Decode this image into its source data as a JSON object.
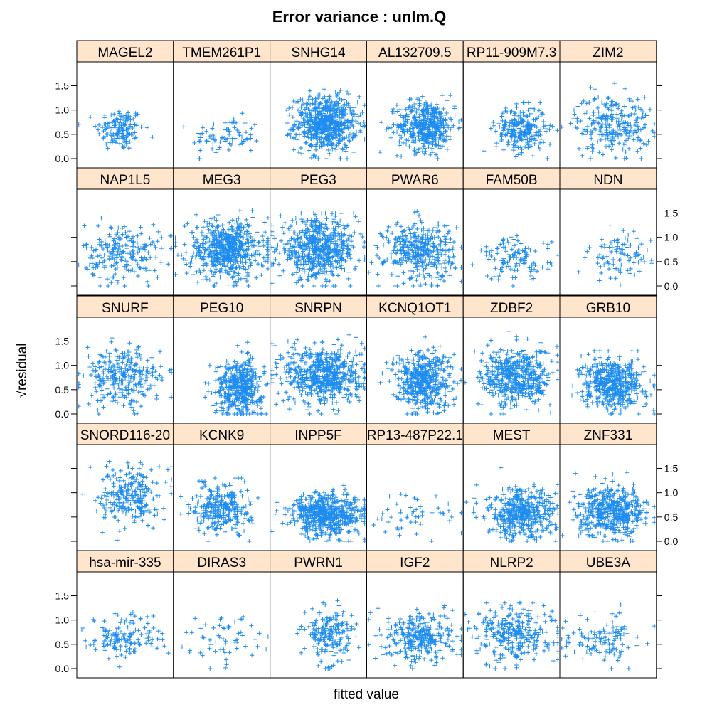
{
  "chart_data": {
    "type": "scatter",
    "title": "Error variance : unlm.Q",
    "xlabel": "fitted value",
    "ylabel": "residual",
    "ylabel_prefix": "√",
    "ylim": [
      0,
      1.8
    ],
    "yticks": [
      "0.0",
      "0.5",
      "1.0",
      "1.5"
    ],
    "grid": false,
    "layout": {
      "columns": 6,
      "rows": 5
    },
    "colors": {
      "point": "#1E8CF0",
      "strip": "#FFE5CC",
      "frame": "#000000"
    },
    "panels": [
      {
        "name": "MAGEL2",
        "n": 150,
        "x": [
          0.45,
          0.12
        ],
        "y": [
          0.6,
          0.22
        ],
        "ymax": 1.1
      },
      {
        "name": "TMEM261P1",
        "n": 80,
        "x": [
          0.55,
          0.18
        ],
        "y": [
          0.45,
          0.2
        ],
        "ymax": 1.15
      },
      {
        "name": "SNHG14",
        "n": 650,
        "x": [
          0.58,
          0.16
        ],
        "y": [
          0.72,
          0.28
        ],
        "ymax": 1.55
      },
      {
        "name": "AL132709.5",
        "n": 450,
        "x": [
          0.62,
          0.15
        ],
        "y": [
          0.68,
          0.26
        ],
        "ymax": 1.3
      },
      {
        "name": "RP11-909M7.3",
        "n": 260,
        "x": [
          0.6,
          0.13
        ],
        "y": [
          0.6,
          0.24
        ],
        "ymax": 1.15
      },
      {
        "name": "ZIM2",
        "n": 260,
        "x": [
          0.55,
          0.2
        ],
        "y": [
          0.72,
          0.3
        ],
        "ymax": 1.55
      },
      {
        "name": "NAP1L5",
        "n": 220,
        "x": [
          0.48,
          0.2
        ],
        "y": [
          0.68,
          0.3
        ],
        "ymax": 1.4
      },
      {
        "name": "MEG3",
        "n": 600,
        "x": [
          0.55,
          0.2
        ],
        "y": [
          0.75,
          0.3
        ],
        "ymax": 1.55
      },
      {
        "name": "PEG3",
        "n": 600,
        "x": [
          0.5,
          0.2
        ],
        "y": [
          0.75,
          0.3
        ],
        "ymax": 1.5
      },
      {
        "name": "PWAR6",
        "n": 400,
        "x": [
          0.55,
          0.18
        ],
        "y": [
          0.72,
          0.3
        ],
        "ymax": 1.7
      },
      {
        "name": "FAM50B",
        "n": 120,
        "x": [
          0.55,
          0.18
        ],
        "y": [
          0.55,
          0.22
        ],
        "ymax": 1.1
      },
      {
        "name": "NDN",
        "n": 90,
        "x": [
          0.62,
          0.16
        ],
        "y": [
          0.6,
          0.25
        ],
        "ymax": 1.25
      },
      {
        "name": "SNURF",
        "n": 300,
        "x": [
          0.48,
          0.2
        ],
        "y": [
          0.75,
          0.3
        ],
        "ymax": 1.8
      },
      {
        "name": "PEG10",
        "n": 450,
        "x": [
          0.68,
          0.12
        ],
        "y": [
          0.55,
          0.28
        ],
        "ymax": 1.65
      },
      {
        "name": "SNRPN",
        "n": 600,
        "x": [
          0.55,
          0.2
        ],
        "y": [
          0.8,
          0.3
        ],
        "ymax": 1.75
      },
      {
        "name": "KCNQ1OT1",
        "n": 500,
        "x": [
          0.58,
          0.15
        ],
        "y": [
          0.7,
          0.3
        ],
        "ymax": 1.6
      },
      {
        "name": "ZDBF2",
        "n": 500,
        "x": [
          0.55,
          0.18
        ],
        "y": [
          0.75,
          0.3
        ],
        "ymax": 1.7
      },
      {
        "name": "GRB10",
        "n": 500,
        "x": [
          0.55,
          0.16
        ],
        "y": [
          0.62,
          0.26
        ],
        "ymax": 1.3
      },
      {
        "name": "SNORD116-20",
        "n": 250,
        "x": [
          0.55,
          0.15
        ],
        "y": [
          0.95,
          0.3
        ],
        "ymax": 1.8
      },
      {
        "name": "KCNK9",
        "n": 300,
        "x": [
          0.5,
          0.15
        ],
        "y": [
          0.68,
          0.25
        ],
        "ymax": 1.3
      },
      {
        "name": "INPP5F",
        "n": 600,
        "x": [
          0.6,
          0.2
        ],
        "y": [
          0.55,
          0.22
        ],
        "ymax": 1.35
      },
      {
        "name": "RP13-487P22.1",
        "n": 50,
        "x": [
          0.5,
          0.22
        ],
        "y": [
          0.6,
          0.25
        ],
        "ymax": 1.25
      },
      {
        "name": "MEST",
        "n": 450,
        "x": [
          0.6,
          0.18
        ],
        "y": [
          0.55,
          0.25
        ],
        "ymax": 1.65
      },
      {
        "name": "ZNF331",
        "n": 500,
        "x": [
          0.55,
          0.18
        ],
        "y": [
          0.6,
          0.25
        ],
        "ymax": 1.5
      },
      {
        "name": "hsa-mir-335",
        "n": 150,
        "x": [
          0.5,
          0.2
        ],
        "y": [
          0.65,
          0.22
        ],
        "ymax": 1.7
      },
      {
        "name": "DIRAS3",
        "n": 60,
        "x": [
          0.5,
          0.2
        ],
        "y": [
          0.6,
          0.25
        ],
        "ymax": 1.25
      },
      {
        "name": "PWRN1",
        "n": 200,
        "x": [
          0.62,
          0.12
        ],
        "y": [
          0.7,
          0.28
        ],
        "ymax": 1.4
      },
      {
        "name": "IGF2",
        "n": 300,
        "x": [
          0.55,
          0.18
        ],
        "y": [
          0.65,
          0.25
        ],
        "ymax": 1.3
      },
      {
        "name": "NLRP2",
        "n": 300,
        "x": [
          0.55,
          0.2
        ],
        "y": [
          0.72,
          0.28
        ],
        "ymax": 1.35
      },
      {
        "name": "UBE3A",
        "n": 120,
        "x": [
          0.45,
          0.2
        ],
        "y": [
          0.6,
          0.25
        ],
        "ymax": 1.6
      }
    ]
  }
}
